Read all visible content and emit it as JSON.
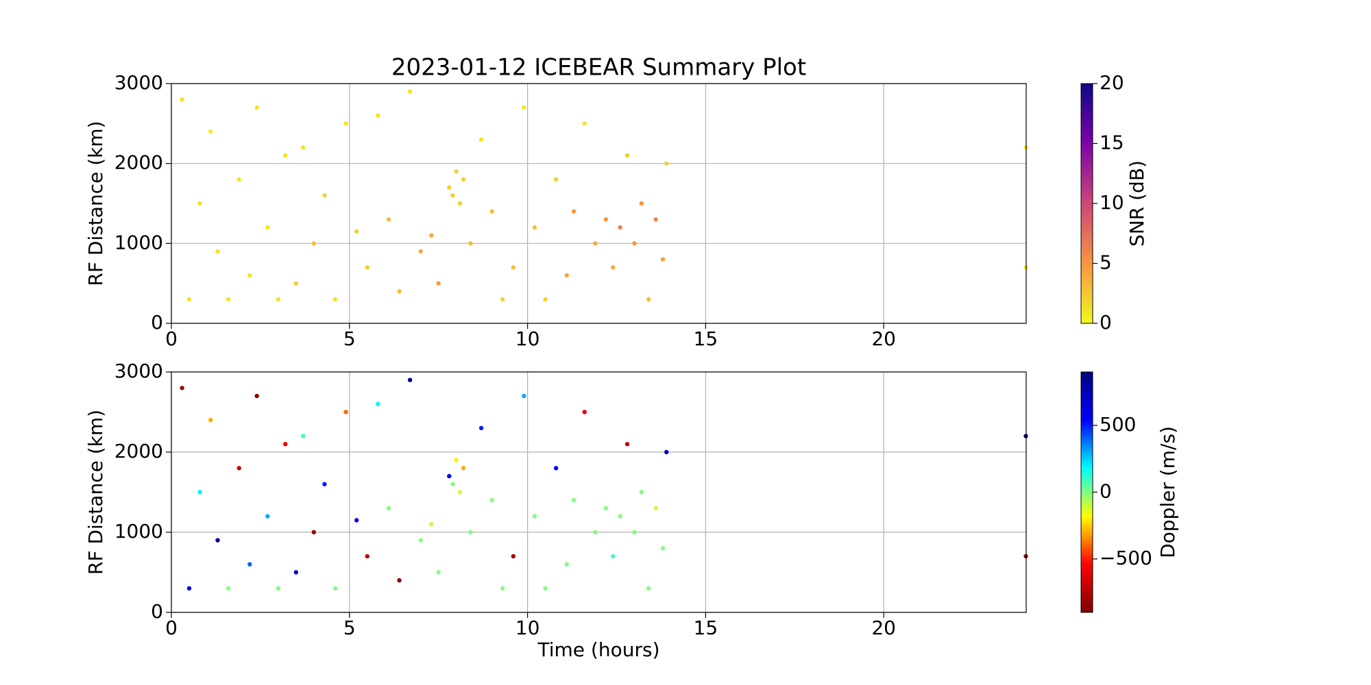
{
  "chart_data": [
    {
      "type": "scatter",
      "title": "2023-01-12 ICEBEAR Summary Plot",
      "ylabel": "RF Distance (km)",
      "xlim": [
        0,
        24
      ],
      "xticks": [
        0,
        5,
        10,
        15,
        20
      ],
      "ylim": [
        0,
        3000
      ],
      "yticks": [
        0,
        1000,
        2000,
        3000
      ],
      "grid": true,
      "x": [
        0.3,
        0.5,
        0.8,
        1.1,
        1.3,
        1.6,
        1.9,
        2.2,
        2.4,
        2.7,
        3.0,
        3.2,
        3.5,
        3.7,
        4.0,
        4.3,
        4.6,
        4.9,
        5.2,
        5.5,
        5.8,
        6.1,
        6.4,
        6.7,
        7.0,
        7.3,
        7.5,
        7.8,
        7.9,
        8.0,
        8.1,
        8.2,
        8.4,
        8.7,
        9.0,
        9.3,
        9.6,
        9.9,
        10.2,
        10.5,
        10.8,
        11.1,
        11.3,
        11.6,
        11.9,
        12.2,
        12.4,
        12.6,
        12.8,
        13.0,
        13.2,
        13.4,
        13.6,
        13.8,
        13.9,
        23.99,
        23.99
      ],
      "y": [
        2800,
        300,
        1500,
        2400,
        900,
        300,
        1800,
        600,
        2700,
        1200,
        300,
        2100,
        500,
        2200,
        1000,
        1600,
        300,
        2500,
        1150,
        700,
        2600,
        1300,
        400,
        2900,
        900,
        1100,
        500,
        1700,
        1600,
        1900,
        1500,
        1800,
        1000,
        2300,
        1400,
        300,
        700,
        2700,
        1200,
        300,
        1800,
        600,
        1400,
        2500,
        1000,
        1300,
        700,
        1200,
        2100,
        1000,
        1500,
        300,
        1300,
        800,
        2000,
        700,
        2200
      ],
      "c": [
        1,
        1,
        1,
        0.5,
        1,
        1,
        1,
        1,
        1,
        1,
        1,
        1,
        2,
        1,
        3,
        2,
        1,
        1,
        2,
        2,
        1,
        3,
        3,
        1,
        4,
        4,
        5,
        2,
        2,
        2,
        2,
        2,
        3,
        1,
        3,
        2,
        3,
        1,
        3,
        2,
        2,
        4,
        5,
        1,
        4,
        5,
        4,
        6,
        2,
        5,
        5,
        3,
        6,
        4,
        2,
        1,
        1
      ],
      "colorbar": {
        "label": "SNR (dB)",
        "lim": [
          0,
          20
        ],
        "ticks": [
          0,
          5,
          10,
          15,
          20
        ],
        "colormap": "plasma_r"
      }
    },
    {
      "type": "scatter",
      "ylabel": "RF Distance (km)",
      "xlabel": "Time (hours)",
      "xlim": [
        0,
        24
      ],
      "xticks": [
        0,
        5,
        10,
        15,
        20
      ],
      "ylim": [
        0,
        3000
      ],
      "yticks": [
        0,
        1000,
        2000,
        3000
      ],
      "grid": true,
      "x": [
        0.3,
        0.5,
        0.8,
        1.1,
        1.3,
        1.6,
        1.9,
        2.2,
        2.4,
        2.7,
        3.0,
        3.2,
        3.5,
        3.7,
        4.0,
        4.3,
        4.6,
        4.9,
        5.2,
        5.5,
        5.8,
        6.1,
        6.4,
        6.7,
        7.0,
        7.3,
        7.5,
        7.8,
        7.9,
        8.0,
        8.1,
        8.2,
        8.4,
        8.7,
        9.0,
        9.3,
        9.6,
        9.9,
        10.2,
        10.5,
        10.8,
        11.1,
        11.3,
        11.6,
        11.9,
        12.2,
        12.4,
        12.6,
        12.8,
        13.0,
        13.2,
        13.4,
        13.6,
        13.8,
        13.9,
        23.99,
        23.99
      ],
      "y": [
        2800,
        300,
        1500,
        2400,
        900,
        300,
        1800,
        600,
        2700,
        1200,
        300,
        2100,
        500,
        2200,
        1000,
        1600,
        300,
        2500,
        1150,
        700,
        2600,
        1300,
        400,
        2900,
        900,
        1100,
        500,
        1700,
        1600,
        1900,
        1500,
        1800,
        1000,
        2300,
        1400,
        300,
        700,
        2700,
        1200,
        300,
        1800,
        600,
        1400,
        2500,
        1000,
        1300,
        700,
        1200,
        2100,
        1000,
        1500,
        300,
        1300,
        800,
        2000,
        700,
        2200
      ],
      "c": [
        -800,
        600,
        200,
        -300,
        800,
        0,
        -700,
        400,
        -850,
        300,
        0,
        -600,
        700,
        100,
        -800,
        500,
        0,
        -400,
        600,
        -700,
        200,
        0,
        -850,
        800,
        0,
        -100,
        0,
        600,
        0,
        -200,
        -100,
        -300,
        0,
        500,
        0,
        0,
        -800,
        300,
        0,
        0,
        600,
        0,
        0,
        -600,
        0,
        0,
        100,
        0,
        -700,
        0,
        0,
        0,
        -100,
        0,
        700,
        -850,
        900
      ],
      "colorbar": {
        "label": "Doppler (m/s)",
        "lim": [
          -900,
          900
        ],
        "ticks": [
          {
            "value": -500,
            "label": "−500"
          },
          0,
          500
        ],
        "colormap": "jet_r"
      }
    }
  ]
}
